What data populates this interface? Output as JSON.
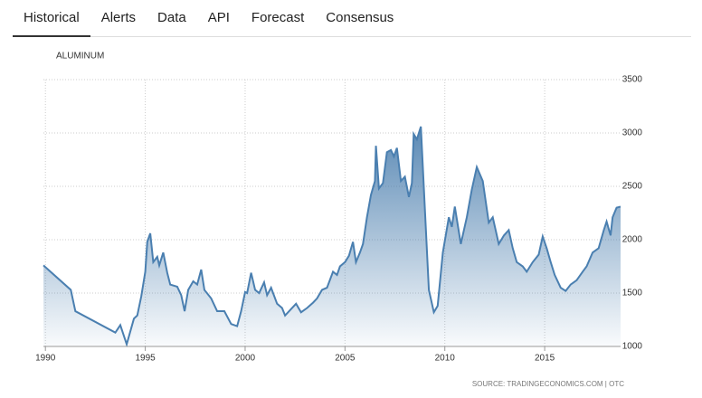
{
  "tabs": [
    "Historical",
    "Alerts",
    "Data",
    "API",
    "Forecast",
    "Consensus"
  ],
  "chart_data": {
    "type": "area",
    "title": "ALUMINUM",
    "source": "SOURCE: TRADINGECONOMICS.COM | OTC",
    "x": [
      1989.9,
      1991.27,
      1991.5,
      1993.5,
      1993.75,
      1994.07,
      1994.43,
      1994.6,
      1994.8,
      1995.0,
      1995.1,
      1995.25,
      1995.4,
      1995.6,
      1995.7,
      1995.9,
      1996.1,
      1996.25,
      1996.6,
      1996.8,
      1996.97,
      1997.15,
      1997.4,
      1997.6,
      1997.8,
      1997.96,
      1998.3,
      1998.6,
      1998.96,
      1999.3,
      1999.6,
      1999.8,
      2000.0,
      2000.1,
      2000.3,
      2000.5,
      2000.7,
      2000.95,
      2001.1,
      2001.3,
      2001.6,
      2001.85,
      2002.0,
      2002.3,
      2002.55,
      2002.8,
      2003.1,
      2003.4,
      2003.6,
      2003.85,
      2004.1,
      2004.4,
      2004.6,
      2004.75,
      2005.0,
      2005.2,
      2005.4,
      2005.55,
      2005.75,
      2005.9,
      2006.1,
      2006.3,
      2006.5,
      2006.55,
      2006.7,
      2006.9,
      2007.1,
      2007.3,
      2007.45,
      2007.6,
      2007.8,
      2008.0,
      2008.2,
      2008.35,
      2008.44,
      2008.6,
      2008.8,
      2009.0,
      2009.2,
      2009.45,
      2009.64,
      2009.9,
      2010.2,
      2010.35,
      2010.5,
      2010.8,
      2011.1,
      2011.35,
      2011.6,
      2011.9,
      2012.2,
      2012.4,
      2012.7,
      2012.96,
      2013.2,
      2013.4,
      2013.6,
      2013.9,
      2014.1,
      2014.4,
      2014.7,
      2014.9,
      2015.1,
      2015.3,
      2015.5,
      2015.8,
      2016.05,
      2016.3,
      2016.6,
      2016.9,
      2017.1,
      2017.4,
      2017.7,
      2017.96,
      2018.1,
      2018.3,
      2018.4,
      2018.6,
      2018.8
    ],
    "series": [
      {
        "name": "ALUMINUM",
        "color": "#4a7fb0",
        "values": [
          1760,
          1530,
          1330,
          1130,
          1200,
          1020,
          1260,
          1290,
          1470,
          1700,
          1980,
          2060,
          1790,
          1840,
          1760,
          1880,
          1690,
          1580,
          1560,
          1480,
          1330,
          1530,
          1610,
          1580,
          1720,
          1530,
          1450,
          1330,
          1330,
          1210,
          1190,
          1330,
          1510,
          1500,
          1690,
          1530,
          1500,
          1600,
          1480,
          1550,
          1400,
          1360,
          1290,
          1350,
          1400,
          1320,
          1360,
          1410,
          1450,
          1530,
          1550,
          1700,
          1670,
          1750,
          1790,
          1850,
          1980,
          1790,
          1880,
          1960,
          2210,
          2420,
          2550,
          2880,
          2480,
          2530,
          2820,
          2840,
          2780,
          2860,
          2550,
          2590,
          2400,
          2530,
          2990,
          2940,
          3060,
          2290,
          1530,
          1320,
          1380,
          1880,
          2210,
          2120,
          2310,
          1960,
          2210,
          2470,
          2680,
          2550,
          2160,
          2210,
          1960,
          2040,
          2090,
          1920,
          1790,
          1750,
          1700,
          1790,
          1860,
          2030,
          1920,
          1790,
          1670,
          1550,
          1520,
          1580,
          1620,
          1700,
          1750,
          1880,
          1920,
          2090,
          2170,
          2040,
          2210,
          2300,
          2310
        ]
      }
    ],
    "xlim": [
      1989.9,
      2018.8
    ],
    "xticks": [
      1990,
      1995,
      2000,
      2005,
      2010,
      2015
    ],
    "ylim": [
      1000,
      3500
    ],
    "yticks": [
      1000,
      1500,
      2000,
      2500,
      3000,
      3500
    ],
    "grid": true
  }
}
